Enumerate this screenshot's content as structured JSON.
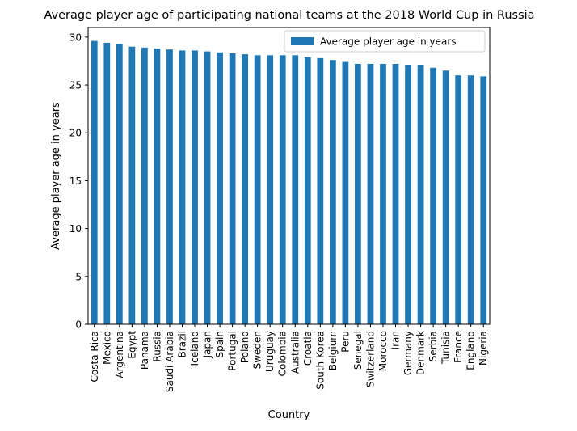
{
  "chart_data": {
    "type": "bar",
    "title": "Average player age of participating national teams at the 2018 World Cup in Russia",
    "xlabel": "Country",
    "ylabel": "Average player age in years",
    "ylim": [
      0,
      31
    ],
    "yticks": [
      0,
      5,
      10,
      15,
      20,
      25,
      30
    ],
    "grid": false,
    "legend_position": "top-right",
    "categories": [
      "Costa Rica",
      "Mexico",
      "Argentina",
      "Egypt",
      "Panama",
      "Russia",
      "Saudi Arabia",
      "Brazil",
      "Iceland",
      "Japan",
      "Spain",
      "Portugal",
      "Poland",
      "Sweden",
      "Uruguay",
      "Colombia",
      "Australia",
      "Croatia",
      "South Korea",
      "Belgium",
      "Peru",
      "Senegal",
      "Switzerland",
      "Morocco",
      "Iran",
      "Germany",
      "Denmark",
      "Serbia",
      "Tunisia",
      "France",
      "England",
      "Nigeria"
    ],
    "series": [
      {
        "name": "Average player age in years",
        "color": "#1f77b4",
        "values": [
          29.6,
          29.4,
          29.3,
          29.0,
          28.9,
          28.8,
          28.7,
          28.6,
          28.6,
          28.5,
          28.4,
          28.3,
          28.2,
          28.1,
          28.1,
          28.1,
          28.1,
          27.9,
          27.8,
          27.6,
          27.4,
          27.2,
          27.2,
          27.2,
          27.2,
          27.1,
          27.1,
          26.8,
          26.5,
          26.0,
          26.0,
          25.9
        ]
      }
    ]
  }
}
